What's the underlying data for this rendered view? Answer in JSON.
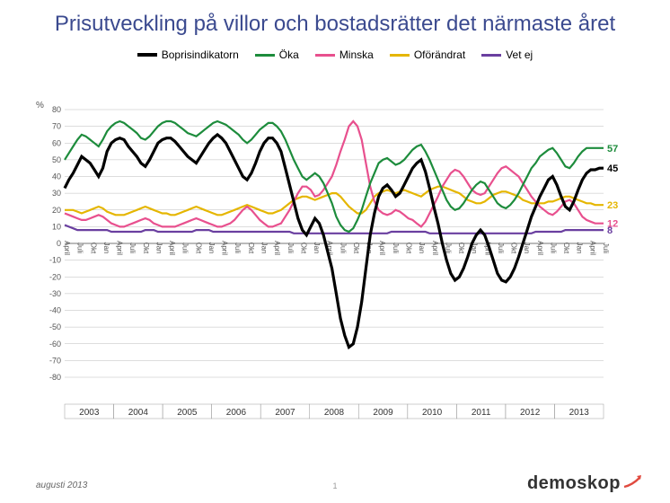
{
  "title": "Prisutveckling på villor och bostadsrätter det närmaste året",
  "y_axis_unit": "%",
  "footer_note": "augusti 2013",
  "page_number": "1",
  "logo_text": "demoskop",
  "logo_accent_color": "#e04a3f",
  "chart": {
    "type": "line",
    "background_color": "#ffffff",
    "grid_color": "#bbbbbb",
    "zero_line_color": "#777777",
    "ylim": [
      -80,
      80
    ],
    "y_ticks": [
      -80,
      -70,
      -60,
      -50,
      -40,
      -30,
      -20,
      -10,
      0,
      10,
      20,
      30,
      40,
      50,
      60,
      70,
      80
    ],
    "x_points_count": 128,
    "x_month_labels": [
      "April",
      "Juli",
      "Okt",
      "Jan",
      "April",
      "Juli",
      "Okt",
      "Jan",
      "April",
      "Juli",
      "Okt",
      "Jan",
      "April",
      "Juli",
      "Okt",
      "Jan",
      "April",
      "Juli",
      "Okt",
      "Jan",
      "April",
      "Juli",
      "Okt",
      "Jan",
      "April",
      "Juli",
      "Okt",
      "Jan",
      "April",
      "Juli",
      "Okt",
      "Jan",
      "April",
      "Juli",
      "Okt",
      "Jan",
      "April",
      "Juli",
      "Okt",
      "Jan",
      "April",
      "Juli"
    ],
    "years": [
      "2003",
      "2004",
      "2005",
      "2006",
      "2007",
      "2008",
      "2009",
      "2010",
      "2011",
      "2012",
      "2013"
    ],
    "legend": [
      {
        "label": "Boprisindikatorn",
        "color": "#000000",
        "weight": "thick"
      },
      {
        "label": "Öka",
        "color": "#1d8c3c",
        "weight": "normal"
      },
      {
        "label": "Minska",
        "color": "#e8508e",
        "weight": "normal"
      },
      {
        "label": "Oförändrat",
        "color": "#e5b600",
        "weight": "normal"
      },
      {
        "label": "Vet ej",
        "color": "#6a3fa0",
        "weight": "normal"
      }
    ],
    "series": {
      "boprisindikatorn": {
        "color": "#000000",
        "thick": true,
        "end_value": 45,
        "values": [
          33,
          38,
          42,
          47,
          52,
          50,
          48,
          44,
          40,
          45,
          55,
          60,
          62,
          63,
          62,
          58,
          55,
          52,
          48,
          46,
          50,
          55,
          60,
          62,
          63,
          63,
          61,
          58,
          55,
          52,
          50,
          48,
          52,
          56,
          60,
          63,
          65,
          63,
          60,
          55,
          50,
          45,
          40,
          38,
          42,
          48,
          55,
          60,
          63,
          63,
          60,
          55,
          45,
          35,
          25,
          15,
          8,
          5,
          10,
          15,
          12,
          5,
          -5,
          -15,
          -30,
          -45,
          -55,
          -62,
          -60,
          -50,
          -35,
          -15,
          5,
          18,
          28,
          33,
          35,
          32,
          28,
          30,
          35,
          40,
          45,
          48,
          50,
          43,
          33,
          22,
          12,
          0,
          -10,
          -18,
          -22,
          -20,
          -15,
          -8,
          0,
          5,
          8,
          5,
          -2,
          -10,
          -18,
          -22,
          -23,
          -20,
          -15,
          -8,
          0,
          8,
          16,
          22,
          28,
          33,
          38,
          40,
          35,
          28,
          22,
          20,
          25,
          32,
          38,
          42,
          44,
          44,
          45,
          45
        ]
      },
      "oka": {
        "color": "#1d8c3c",
        "thick": false,
        "end_value": 57,
        "values": [
          50,
          54,
          58,
          62,
          65,
          64,
          62,
          60,
          58,
          62,
          67,
          70,
          72,
          73,
          72,
          70,
          68,
          66,
          63,
          62,
          64,
          67,
          70,
          72,
          73,
          73,
          72,
          70,
          68,
          66,
          65,
          64,
          66,
          68,
          70,
          72,
          73,
          72,
          71,
          69,
          67,
          65,
          62,
          60,
          62,
          65,
          68,
          70,
          72,
          72,
          70,
          67,
          62,
          56,
          50,
          45,
          40,
          38,
          40,
          42,
          40,
          36,
          30,
          24,
          16,
          11,
          8,
          7,
          9,
          14,
          20,
          28,
          36,
          42,
          48,
          50,
          51,
          49,
          47,
          48,
          50,
          53,
          56,
          58,
          59,
          55,
          50,
          44,
          38,
          32,
          26,
          22,
          20,
          21,
          24,
          28,
          32,
          35,
          37,
          36,
          32,
          28,
          24,
          22,
          21,
          23,
          26,
          30,
          35,
          40,
          45,
          48,
          52,
          54,
          56,
          57,
          54,
          50,
          46,
          45,
          48,
          52,
          55,
          57,
          57,
          57,
          57,
          57
        ]
      },
      "minska": {
        "color": "#e8508e",
        "thick": false,
        "end_value": 12,
        "values": [
          18,
          17,
          16,
          15,
          14,
          14,
          15,
          16,
          17,
          16,
          14,
          12,
          11,
          10,
          10,
          11,
          12,
          13,
          14,
          15,
          14,
          12,
          11,
          10,
          10,
          10,
          10,
          11,
          12,
          13,
          14,
          15,
          14,
          13,
          12,
          11,
          10,
          10,
          11,
          12,
          14,
          17,
          20,
          22,
          20,
          17,
          14,
          12,
          10,
          10,
          11,
          12,
          16,
          20,
          25,
          30,
          34,
          34,
          32,
          28,
          29,
          32,
          36,
          40,
          47,
          55,
          62,
          70,
          73,
          70,
          62,
          48,
          34,
          25,
          20,
          18,
          17,
          18,
          20,
          19,
          17,
          15,
          14,
          12,
          10,
          13,
          18,
          23,
          28,
          34,
          38,
          42,
          44,
          43,
          40,
          36,
          32,
          30,
          29,
          30,
          34,
          38,
          42,
          45,
          46,
          44,
          42,
          40,
          36,
          32,
          28,
          25,
          22,
          20,
          18,
          17,
          19,
          22,
          25,
          26,
          24,
          20,
          16,
          14,
          13,
          12,
          12,
          12
        ]
      },
      "oforandrat": {
        "color": "#e5b600",
        "thick": false,
        "end_value": 23,
        "values": [
          20,
          20,
          20,
          19,
          18,
          19,
          20,
          21,
          22,
          21,
          19,
          18,
          17,
          17,
          17,
          18,
          19,
          20,
          21,
          22,
          21,
          20,
          19,
          18,
          18,
          17,
          17,
          18,
          19,
          20,
          21,
          22,
          21,
          20,
          19,
          18,
          17,
          17,
          18,
          19,
          20,
          21,
          22,
          23,
          22,
          21,
          20,
          19,
          18,
          18,
          19,
          20,
          22,
          24,
          26,
          27,
          28,
          28,
          27,
          26,
          27,
          28,
          29,
          30,
          30,
          28,
          25,
          22,
          20,
          18,
          18,
          20,
          24,
          28,
          30,
          31,
          32,
          31,
          30,
          31,
          32,
          31,
          30,
          29,
          28,
          30,
          32,
          33,
          34,
          34,
          33,
          32,
          31,
          30,
          28,
          26,
          25,
          24,
          24,
          25,
          27,
          29,
          30,
          31,
          31,
          30,
          29,
          28,
          26,
          25,
          24,
          24,
          24,
          24,
          25,
          25,
          26,
          27,
          28,
          28,
          27,
          26,
          25,
          24,
          24,
          23,
          23,
          23
        ]
      },
      "vetej": {
        "color": "#6a3fa0",
        "thick": false,
        "end_value": 8,
        "values": [
          11,
          10,
          9,
          8,
          8,
          8,
          8,
          8,
          8,
          8,
          8,
          7,
          7,
          7,
          7,
          7,
          7,
          7,
          7,
          8,
          8,
          8,
          7,
          7,
          7,
          7,
          7,
          7,
          7,
          7,
          7,
          8,
          8,
          8,
          8,
          7,
          7,
          7,
          7,
          7,
          7,
          7,
          7,
          7,
          7,
          7,
          7,
          7,
          7,
          7,
          7,
          7,
          7,
          7,
          6,
          6,
          6,
          6,
          6,
          6,
          6,
          6,
          6,
          6,
          6,
          6,
          6,
          6,
          6,
          6,
          6,
          6,
          6,
          6,
          6,
          6,
          6,
          7,
          7,
          7,
          7,
          7,
          7,
          7,
          7,
          7,
          6,
          6,
          6,
          6,
          6,
          6,
          6,
          6,
          6,
          6,
          6,
          6,
          6,
          6,
          6,
          6,
          6,
          6,
          6,
          6,
          6,
          6,
          6,
          6,
          6,
          7,
          7,
          7,
          7,
          7,
          7,
          7,
          8,
          8,
          8,
          8,
          8,
          8,
          8,
          8,
          8,
          8
        ]
      }
    }
  }
}
